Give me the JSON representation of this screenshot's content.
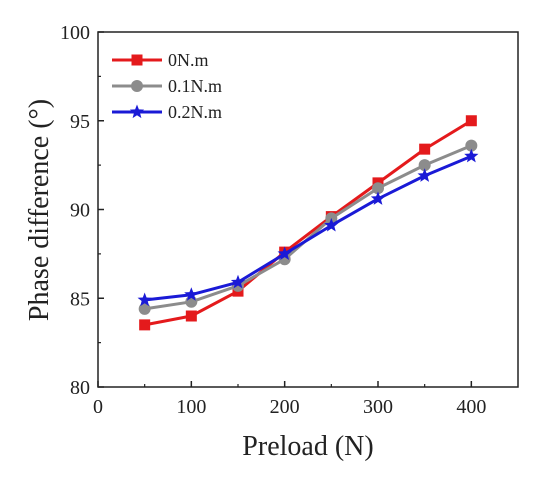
{
  "chart_data": {
    "type": "line",
    "title": "",
    "xlabel": "Preload (N)",
    "ylabel": "Phase difference (°)",
    "xlim": [
      0,
      450
    ],
    "ylim": [
      80,
      100
    ],
    "xticks": [
      0,
      100,
      200,
      300,
      400
    ],
    "yticks": [
      80,
      85,
      90,
      95,
      100
    ],
    "x": [
      50,
      100,
      150,
      200,
      250,
      300,
      350,
      400
    ],
    "legend_position": "top-left",
    "grid": false,
    "series": [
      {
        "name": "0N.m",
        "color": "#e41a1c",
        "marker": "square",
        "values": [
          83.5,
          84.0,
          85.4,
          87.6,
          89.6,
          91.5,
          93.4,
          95.0
        ]
      },
      {
        "name": "0.1N.m",
        "color": "#8c8c8c",
        "marker": "circle",
        "values": [
          84.4,
          84.8,
          85.7,
          87.2,
          89.5,
          91.2,
          92.5,
          93.6
        ]
      },
      {
        "name": "0.2N.m",
        "color": "#1a1ad6",
        "marker": "star",
        "values": [
          84.9,
          85.2,
          85.9,
          87.5,
          89.1,
          90.6,
          91.9,
          93.0
        ]
      }
    ]
  }
}
